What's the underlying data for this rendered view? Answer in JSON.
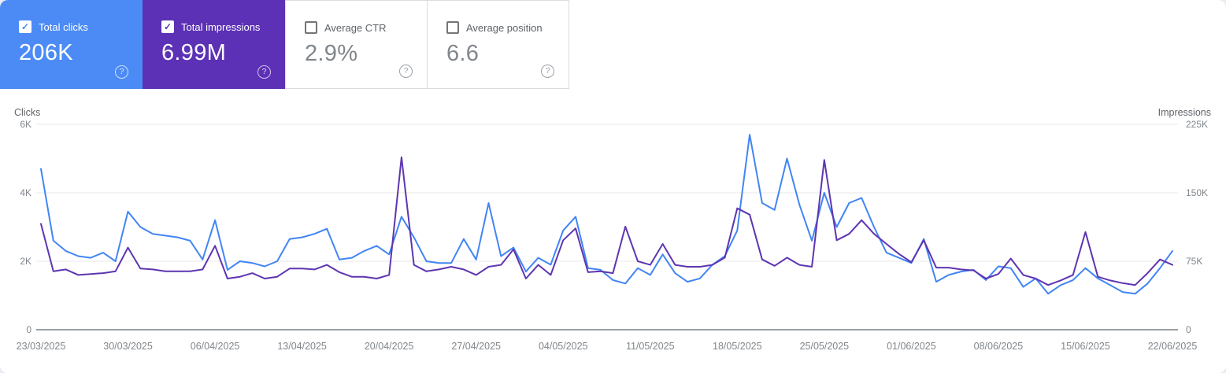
{
  "icons": {
    "check": "✓",
    "help": "?"
  },
  "cards": [
    {
      "label": "Total clicks",
      "value": "206K",
      "checked": true,
      "bg": "#4c8bf5"
    },
    {
      "label": "Total impressions",
      "value": "6.99M",
      "checked": true,
      "bg": "#5c31b5"
    },
    {
      "label": "Average CTR",
      "value": "2.9%",
      "checked": false,
      "bg": "#ffffff"
    },
    {
      "label": "Average position",
      "value": "6.6",
      "checked": false,
      "bg": "#ffffff"
    }
  ],
  "chart_data": {
    "type": "line",
    "left_axis": {
      "title": "Clicks",
      "max": 6000,
      "ticks": [
        {
          "label": "6K",
          "value": 6000
        },
        {
          "label": "4K",
          "value": 4000
        },
        {
          "label": "2K",
          "value": 2000
        },
        {
          "label": "0",
          "value": 0
        }
      ]
    },
    "right_axis": {
      "title": "Impressions",
      "max_thousands": 225,
      "ticks": [
        {
          "label": "225K",
          "value_k": 225
        },
        {
          "label": "150K",
          "value_k": 150
        },
        {
          "label": "75K",
          "value_k": 75
        },
        {
          "label": "0",
          "value_k": 0
        }
      ]
    },
    "x_tick_labels": [
      "23/03/2025",
      "30/03/2025",
      "06/04/2025",
      "13/04/2025",
      "20/04/2025",
      "27/04/2025",
      "04/05/2025",
      "11/05/2025",
      "18/05/2025",
      "25/05/2025",
      "01/06/2025",
      "08/06/2025",
      "15/06/2025",
      "22/06/2025"
    ],
    "days_per_tick": 7,
    "grid": true,
    "colors": {
      "clicks_line": "#4285f4",
      "impressions_line": "#5e35b1",
      "gridline": "#f1f1f1",
      "axis_line": "#9aa0a6"
    },
    "series": [
      {
        "name": "Total clicks",
        "unit": "clicks",
        "values": [
          4700,
          2600,
          2300,
          2150,
          2100,
          2250,
          2000,
          3450,
          3000,
          2800,
          2750,
          2700,
          2600,
          2050,
          3200,
          1750,
          2000,
          1950,
          1850,
          2000,
          2650,
          2700,
          2800,
          2950,
          2050,
          2100,
          2300,
          2450,
          2200,
          3300,
          2700,
          2000,
          1950,
          1950,
          2650,
          2050,
          3700,
          2150,
          2400,
          1700,
          2100,
          1900,
          2900,
          3300,
          1800,
          1750,
          1450,
          1350,
          1800,
          1600,
          2200,
          1650,
          1400,
          1500,
          1900,
          2150,
          2900,
          5700,
          3700,
          3500,
          5000,
          3650,
          2600,
          4000,
          3000,
          3700,
          3850,
          3000,
          2250,
          2100,
          1950,
          2650,
          1400,
          1600,
          1700,
          1750,
          1450,
          1850,
          1800,
          1250,
          1500,
          1050,
          1300,
          1450,
          1800,
          1500,
          1300,
          1100,
          1050,
          1350,
          1800,
          2300
        ]
      },
      {
        "name": "Total impressions",
        "unit": "impressions_thousands",
        "values": [
          116,
          64,
          66,
          60,
          61,
          62,
          64,
          90,
          67,
          66,
          64,
          64,
          64,
          66,
          92,
          56,
          58,
          62,
          56,
          58,
          67,
          67,
          66,
          71,
          63,
          58,
          58,
          56,
          60,
          189,
          71,
          64,
          66,
          69,
          66,
          60,
          69,
          71,
          88,
          56,
          71,
          60,
          98,
          111,
          63,
          64,
          62,
          113,
          75,
          71,
          94,
          71,
          69,
          69,
          71,
          79,
          133,
          126,
          77,
          70,
          79,
          71,
          69,
          186,
          98,
          105,
          120,
          105,
          94,
          83,
          74,
          98,
          68,
          68,
          66,
          65,
          56,
          61,
          78,
          60,
          56,
          49,
          54,
          60,
          107,
          58,
          54,
          51,
          49,
          62,
          77,
          71
        ]
      }
    ]
  }
}
